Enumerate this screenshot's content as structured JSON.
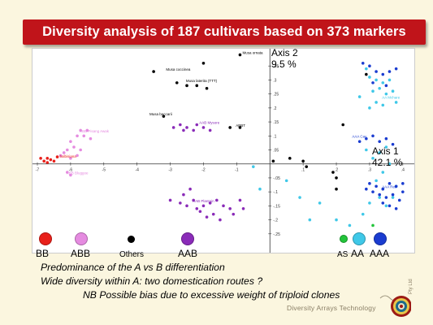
{
  "slide": {
    "title": "Diversity analysis of 187 cultivars based on 373 markers",
    "axis2_name": "Axis 2",
    "axis2_pct": "9.5 %",
    "axis1_name": "Axis 1",
    "axis1_pct": "42.1 %",
    "notes": [
      "Predominance of the A vs B differentiation",
      "Wide diversity within A: two domestication routes ?",
      "NB Possible bias due to excessive weight of triploid clones"
    ],
    "brand": "Diversity Arrays Technology",
    "brand_suffix": "Pty Ltd"
  },
  "colors": {
    "banner": "#c0141a",
    "BB": "#e8201a",
    "ABB": "#e58be0",
    "Others": "#000000",
    "AAB": "#8a2bb8",
    "AS": "#22c43a",
    "AA": "#3fc8e8",
    "AAA": "#1a3cd0"
  },
  "legend": [
    {
      "key": "BB",
      "label": "BB"
    },
    {
      "key": "ABB",
      "label": "ABB"
    },
    {
      "key": "Others",
      "label": "Others"
    },
    {
      "key": "AAB",
      "label": "AAB"
    },
    {
      "key": "AS",
      "label": "AS"
    },
    {
      "key": "AA",
      "label": "AA"
    },
    {
      "key": "AAA",
      "label": "AAA"
    }
  ],
  "chart_data": {
    "type": "scatter",
    "xlim": [
      -0.7,
      0.42
    ],
    "ylim": [
      -0.3,
      0.4
    ],
    "x_ticks": [
      -0.7,
      -0.6,
      -0.5,
      -0.4,
      -0.3,
      -0.2,
      -0.1,
      0.1,
      0.2,
      0.3,
      0.4
    ],
    "x_tick_labels": [
      "-7",
      "-6",
      "-5",
      "-4",
      "-3",
      "-2",
      "-1",
      ".1",
      ".2",
      ".3",
      ".4"
    ],
    "y_ticks": [
      0.35,
      0.3,
      0.25,
      0.2,
      0.15,
      0.1,
      0.05,
      -0.05,
      -0.1,
      -0.15,
      -0.2,
      -0.25
    ],
    "y_tick_labels": [
      ".35",
      ".3",
      ".25",
      ".2",
      ".15",
      ".1",
      ".05",
      "-.05",
      "-.1",
      "-.15",
      "-.2",
      "-.25"
    ],
    "labels": [
      {
        "text": "Musa ornata",
        "x": -0.09,
        "y": 0.39,
        "group": "Others"
      },
      {
        "text": "Musa coccinea",
        "x": -0.32,
        "y": 0.33,
        "group": "Others"
      },
      {
        "text": "Musa laterita (TTT)",
        "x": -0.26,
        "y": 0.29,
        "group": "Others"
      },
      {
        "text": "Musa beccarii",
        "x": -0.37,
        "y": 0.17,
        "group": "Others"
      },
      {
        "text": "ABBT",
        "x": -0.11,
        "y": 0.13,
        "group": "Others"
      },
      {
        "text": "AAB Mysore",
        "x": -0.22,
        "y": 0.14,
        "group": "AAB"
      },
      {
        "text": "ABB Pisang Awak",
        "x": -0.58,
        "y": 0.11,
        "group": "ABB"
      },
      {
        "text": "ABB Bluggoe",
        "x": -0.62,
        "y": -0.04,
        "group": "ABB"
      },
      {
        "text": "balbisiana",
        "x": -0.64,
        "y": 0.02,
        "group": "BB"
      },
      {
        "text": "AAA Cav",
        "x": 0.24,
        "y": 0.09,
        "group": "AAA"
      },
      {
        "text": "AAA Red",
        "x": 0.33,
        "y": -0.09,
        "group": "AAA"
      },
      {
        "text": "AAB Plantain",
        "x": -0.24,
        "y": -0.14,
        "group": "AAB"
      },
      {
        "text": "AA Mchare",
        "x": 0.33,
        "y": 0.23,
        "group": "AA"
      }
    ],
    "series": [
      {
        "name": "BB",
        "points": [
          [
            -0.69,
            0.02
          ],
          [
            -0.68,
            0.01
          ],
          [
            -0.67,
            0.02
          ],
          [
            -0.66,
            0.015
          ],
          [
            -0.65,
            0.01
          ],
          [
            -0.64,
            0.025
          ],
          [
            -0.67,
            0.005
          ]
        ]
      },
      {
        "name": "ABB",
        "points": [
          [
            -0.63,
            0.03
          ],
          [
            -0.61,
            0.05
          ],
          [
            -0.6,
            0.08
          ],
          [
            -0.58,
            0.1
          ],
          [
            -0.57,
            0.12
          ],
          [
            -0.56,
            0.1
          ],
          [
            -0.59,
            0.06
          ],
          [
            -0.62,
            0.04
          ],
          [
            -0.6,
            0.02
          ],
          [
            -0.55,
            0.12
          ],
          [
            -0.54,
            0.09
          ],
          [
            -0.61,
            -0.03
          ],
          [
            -0.6,
            -0.04
          ],
          [
            -0.58,
            0.03
          ],
          [
            -0.57,
            0.05
          ]
        ]
      },
      {
        "name": "Others",
        "points": [
          [
            -0.09,
            0.39
          ],
          [
            -0.2,
            0.36
          ],
          [
            -0.35,
            0.33
          ],
          [
            -0.28,
            0.29
          ],
          [
            -0.25,
            0.28
          ],
          [
            -0.22,
            0.28
          ],
          [
            -0.19,
            0.27
          ],
          [
            -0.32,
            0.17
          ],
          [
            -0.09,
            0.13
          ],
          [
            -0.12,
            0.13
          ],
          [
            0.06,
            0.02
          ],
          [
            0.1,
            0.01
          ],
          [
            0.11,
            -0.01
          ],
          [
            0.2,
            -0.09
          ],
          [
            0.22,
            0.14
          ],
          [
            0.29,
            0.32
          ],
          [
            0.2,
            -0.05
          ],
          [
            0.19,
            -0.03
          ],
          [
            0.01,
            0.01
          ]
        ]
      },
      {
        "name": "AAB",
        "points": [
          [
            -0.29,
            0.13
          ],
          [
            -0.27,
            0.14
          ],
          [
            -0.25,
            0.13
          ],
          [
            -0.23,
            0.12
          ],
          [
            -0.22,
            0.14
          ],
          [
            -0.2,
            0.13
          ],
          [
            -0.18,
            0.12
          ],
          [
            -0.26,
            0.12
          ],
          [
            -0.3,
            -0.13
          ],
          [
            -0.27,
            -0.14
          ],
          [
            -0.25,
            -0.15
          ],
          [
            -0.23,
            -0.13
          ],
          [
            -0.22,
            -0.16
          ],
          [
            -0.2,
            -0.15
          ],
          [
            -0.18,
            -0.14
          ],
          [
            -0.16,
            -0.13
          ],
          [
            -0.14,
            -0.15
          ],
          [
            -0.12,
            -0.16
          ],
          [
            -0.21,
            -0.17
          ],
          [
            -0.19,
            -0.19
          ],
          [
            -0.17,
            -0.18
          ],
          [
            -0.15,
            -0.2
          ],
          [
            -0.24,
            -0.09
          ],
          [
            -0.26,
            -0.11
          ],
          [
            -0.11,
            -0.18
          ],
          [
            -0.09,
            -0.13
          ],
          [
            -0.08,
            -0.16
          ]
        ]
      },
      {
        "name": "AS",
        "points": [
          [
            0.31,
            -0.22
          ]
        ]
      },
      {
        "name": "AA",
        "points": [
          [
            0.29,
            0.34
          ],
          [
            0.3,
            0.31
          ],
          [
            0.32,
            0.3
          ],
          [
            0.34,
            0.29
          ],
          [
            0.36,
            0.3
          ],
          [
            0.33,
            0.27
          ],
          [
            0.31,
            0.26
          ],
          [
            0.35,
            0.25
          ],
          [
            0.37,
            0.26
          ],
          [
            0.32,
            0.22
          ],
          [
            0.3,
            0.2
          ],
          [
            0.34,
            0.21
          ],
          [
            0.38,
            0.22
          ],
          [
            0.27,
            0.24
          ],
          [
            0.29,
            0.05
          ],
          [
            0.31,
            0.02
          ],
          [
            0.33,
            0.04
          ],
          [
            0.35,
            0.06
          ],
          [
            0.36,
            0.0
          ],
          [
            0.34,
            -0.03
          ],
          [
            0.32,
            -0.06
          ],
          [
            0.37,
            -0.12
          ],
          [
            0.35,
            -0.15
          ],
          [
            0.33,
            -0.12
          ],
          [
            0.38,
            -0.08
          ],
          [
            0.3,
            -0.14
          ],
          [
            0.28,
            -0.18
          ],
          [
            0.24,
            -0.22
          ],
          [
            0.2,
            -0.2
          ],
          [
            0.15,
            -0.14
          ],
          [
            0.05,
            -0.06
          ],
          [
            0.09,
            -0.12
          ],
          [
            -0.05,
            -0.01
          ],
          [
            -0.03,
            -0.09
          ],
          [
            0.12,
            -0.2
          ]
        ]
      },
      {
        "name": "AAA",
        "points": [
          [
            0.28,
            0.36
          ],
          [
            0.3,
            0.35
          ],
          [
            0.32,
            0.33
          ],
          [
            0.34,
            0.32
          ],
          [
            0.36,
            0.33
          ],
          [
            0.38,
            0.34
          ],
          [
            0.35,
            0.28
          ],
          [
            0.31,
            0.29
          ],
          [
            0.27,
            0.08
          ],
          [
            0.29,
            0.09
          ],
          [
            0.31,
            0.1
          ],
          [
            0.33,
            0.08
          ],
          [
            0.35,
            0.09
          ],
          [
            0.37,
            0.07
          ],
          [
            0.3,
            -0.07
          ],
          [
            0.32,
            -0.08
          ],
          [
            0.34,
            -0.09
          ],
          [
            0.36,
            -0.07
          ],
          [
            0.38,
            -0.08
          ],
          [
            0.4,
            -0.1
          ],
          [
            0.33,
            -0.11
          ],
          [
            0.35,
            -0.12
          ],
          [
            0.37,
            -0.11
          ],
          [
            0.39,
            -0.13
          ],
          [
            0.31,
            -0.1
          ],
          [
            0.29,
            -0.09
          ],
          [
            0.36,
            -0.15
          ],
          [
            0.38,
            -0.16
          ],
          [
            0.34,
            -0.14
          ],
          [
            0.4,
            -0.07
          ]
        ]
      }
    ]
  }
}
